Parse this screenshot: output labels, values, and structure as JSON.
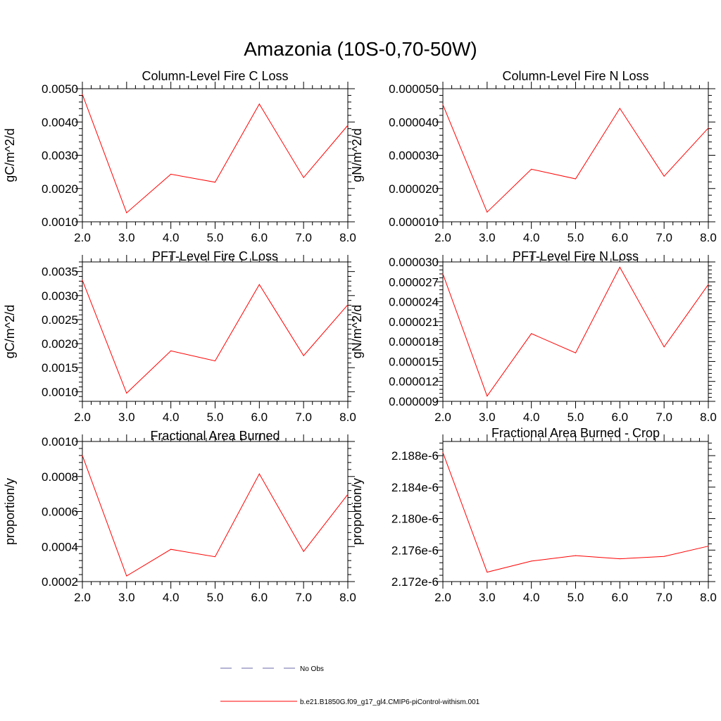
{
  "title": "Amazonia (10S-0,70-50W)",
  "colors": {
    "model": "#ff0000",
    "obs": "#6a6aa8",
    "axis": "#000000"
  },
  "chart_data": [
    {
      "type": "line",
      "title": "Column-Level Fire C Loss",
      "ylabel": "gC/m^2/d",
      "x": [
        2,
        3,
        4,
        5,
        6,
        7,
        8
      ],
      "xticks": [
        "2.0",
        "3.0",
        "4.0",
        "5.0",
        "6.0",
        "7.0",
        "8.0"
      ],
      "xlim": [
        2,
        8
      ],
      "ylim": [
        0.001,
        0.005
      ],
      "yticks": [
        0.001,
        0.002,
        0.003,
        0.004,
        0.005
      ],
      "ytick_labels": [
        "0.0010",
        "0.0020",
        "0.0030",
        "0.0040",
        "0.0050"
      ],
      "series": [
        {
          "name": "b.e21.B1850G.f09_g17_gl4.CMIP6-piControl-withism.001",
          "values": [
            0.00483,
            0.00127,
            0.00243,
            0.00219,
            0.00454,
            0.00233,
            0.0039
          ]
        }
      ]
    },
    {
      "type": "line",
      "title": "Column-Level Fire N Loss",
      "ylabel": "gN/m^2/d",
      "x": [
        2,
        3,
        4,
        5,
        6,
        7,
        8
      ],
      "xticks": [
        "2.0",
        "3.0",
        "4.0",
        "5.0",
        "6.0",
        "7.0",
        "8.0"
      ],
      "xlim": [
        2,
        8
      ],
      "ylim": [
        1e-05,
        5e-05
      ],
      "yticks": [
        1e-05,
        2e-05,
        3e-05,
        4e-05,
        5e-05
      ],
      "ytick_labels": [
        "0.000010",
        "0.000020",
        "0.000030",
        "0.000040",
        "0.000050"
      ],
      "series": [
        {
          "name": "b.e21.B1850G.f09_g17_gl4.CMIP6-piControl-withism.001",
          "values": [
            4.52e-05,
            1.29e-05,
            2.58e-05,
            2.29e-05,
            4.41e-05,
            2.37e-05,
            3.82e-05
          ]
        }
      ]
    },
    {
      "type": "line",
      "title": "PFT-Level Fire C Loss",
      "ylabel": "gC/m^2/d",
      "x": [
        2,
        3,
        4,
        5,
        6,
        7,
        8
      ],
      "xticks": [
        "2.0",
        "3.0",
        "4.0",
        "5.0",
        "6.0",
        "7.0",
        "8.0"
      ],
      "xlim": [
        2,
        8
      ],
      "ylim": [
        0.0008,
        0.0037
      ],
      "yticks": [
        0.001,
        0.0015,
        0.002,
        0.0025,
        0.003,
        0.0035
      ],
      "ytick_labels": [
        "0.0010",
        "0.0015",
        "0.0020",
        "0.0025",
        "0.0030",
        "0.0035"
      ],
      "series": [
        {
          "name": "b.e21.B1850G.f09_g17_gl4.CMIP6-piControl-withism.001",
          "values": [
            0.00332,
            0.00097,
            0.00185,
            0.00164,
            0.00323,
            0.00175,
            0.00281
          ]
        }
      ]
    },
    {
      "type": "line",
      "title": "PFT-Level Fire N Loss",
      "ylabel": "gN/m^2/d",
      "x": [
        2,
        3,
        4,
        5,
        6,
        7,
        8
      ],
      "xticks": [
        "2.0",
        "3.0",
        "4.0",
        "5.0",
        "6.0",
        "7.0",
        "8.0"
      ],
      "xlim": [
        2,
        8
      ],
      "ylim": [
        9e-06,
        3e-05
      ],
      "yticks": [
        9e-06,
        1.2e-05,
        1.5e-05,
        1.8e-05,
        2.1e-05,
        2.4e-05,
        2.7e-05,
        3e-05
      ],
      "ytick_labels": [
        "0.000009",
        "0.000012",
        "0.000015",
        "0.000018",
        "0.000021",
        "0.000024",
        "0.000027",
        "0.000030"
      ],
      "series": [
        {
          "name": "b.e21.B1850G.f09_g17_gl4.CMIP6-piControl-withism.001",
          "values": [
            2.82e-05,
            9.8e-06,
            1.92e-05,
            1.63e-05,
            2.92e-05,
            1.72e-05,
            2.66e-05
          ]
        }
      ]
    },
    {
      "type": "line",
      "title": "Fractional Area Burned",
      "ylabel": "proportion/y",
      "x": [
        2,
        3,
        4,
        5,
        6,
        7,
        8
      ],
      "xticks": [
        "2.0",
        "3.0",
        "4.0",
        "5.0",
        "6.0",
        "7.0",
        "8.0"
      ],
      "xlim": [
        2,
        8
      ],
      "ylim": [
        0.0002,
        0.001
      ],
      "yticks": [
        0.0002,
        0.0004,
        0.0006,
        0.0008,
        0.001
      ],
      "ytick_labels": [
        "0.0002",
        "0.0004",
        "0.0006",
        "0.0008",
        "0.0010"
      ],
      "series": [
        {
          "name": "b.e21.B1850G.f09_g17_gl4.CMIP6-piControl-withism.001",
          "values": [
            0.00092,
            0.000232,
            0.000384,
            0.000342,
            0.000815,
            0.000372,
            0.000698
          ]
        }
      ]
    },
    {
      "type": "line",
      "title": "Fractional Area Burned - Crop",
      "ylabel": "proportion/y",
      "x": [
        2,
        3,
        4,
        5,
        6,
        7,
        8
      ],
      "xticks": [
        "2.0",
        "3.0",
        "4.0",
        "5.0",
        "6.0",
        "7.0",
        "8.0"
      ],
      "xlim": [
        2,
        8
      ],
      "ylim": [
        2.172e-06,
        2.1898e-06
      ],
      "yticks": [
        2.172e-06,
        2.176e-06,
        2.18e-06,
        2.184e-06,
        2.188e-06
      ],
      "ytick_labels": [
        "2.172e-6",
        "2.176e-6",
        "2.180e-6",
        "2.184e-6",
        "2.188e-6"
      ],
      "series": [
        {
          "name": "b.e21.B1850G.f09_g17_gl4.CMIP6-piControl-withism.001",
          "values": [
            2.1884e-06,
            2.1732e-06,
            2.1746e-06,
            2.1753e-06,
            2.1749e-06,
            2.1752e-06,
            2.1765e-06
          ]
        }
      ]
    }
  ],
  "legend": [
    {
      "label": "No Obs",
      "style": "dashed",
      "color": "#6a6aa8"
    },
    {
      "label": "b.e21.B1850G.f09_g17_gl4.CMIP6-piControl-withism.001",
      "style": "solid",
      "color": "#ff0000"
    }
  ]
}
